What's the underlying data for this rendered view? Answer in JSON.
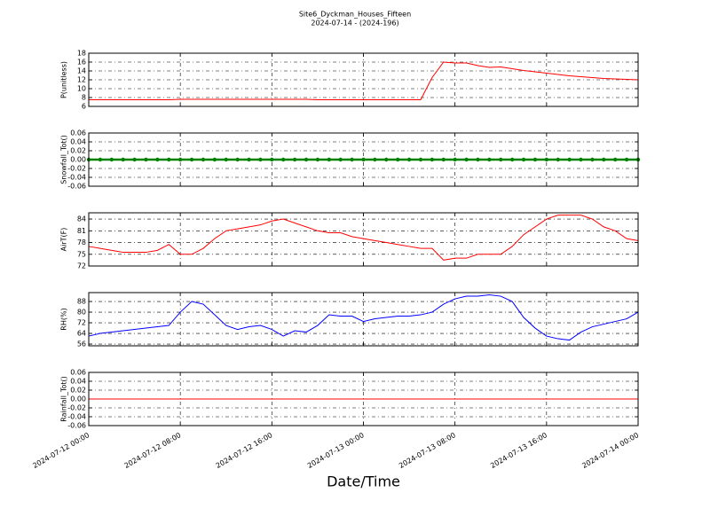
{
  "chart_data": [
    {
      "type": "line",
      "title": "Site6_Dyckman_Houses_Fifteen",
      "subtitle": "2024-07-14 - (2024-196)",
      "y_label": "P(unitless)",
      "x": [
        "2024-07-12 00:00",
        "2024-07-12 01:00",
        "2024-07-12 02:00",
        "2024-07-12 03:00",
        "2024-07-12 04:00",
        "2024-07-12 05:00",
        "2024-07-12 06:00",
        "2024-07-12 07:00",
        "2024-07-12 08:00",
        "2024-07-12 09:00",
        "2024-07-12 10:00",
        "2024-07-12 11:00",
        "2024-07-12 12:00",
        "2024-07-12 13:00",
        "2024-07-12 14:00",
        "2024-07-12 15:00",
        "2024-07-12 16:00",
        "2024-07-12 17:00",
        "2024-07-12 18:00",
        "2024-07-12 19:00",
        "2024-07-12 20:00",
        "2024-07-12 21:00",
        "2024-07-12 22:00",
        "2024-07-12 23:00",
        "2024-07-13 00:00",
        "2024-07-13 01:00",
        "2024-07-13 02:00",
        "2024-07-13 03:00",
        "2024-07-13 04:00",
        "2024-07-13 05:00",
        "2024-07-13 06:00",
        "2024-07-13 07:00",
        "2024-07-13 08:00",
        "2024-07-13 09:00",
        "2024-07-13 10:00",
        "2024-07-13 11:00",
        "2024-07-13 12:00",
        "2024-07-13 13:00",
        "2024-07-13 14:00",
        "2024-07-13 15:00",
        "2024-07-13 16:00",
        "2024-07-13 17:00",
        "2024-07-13 18:00",
        "2024-07-13 19:00",
        "2024-07-13 20:00",
        "2024-07-13 21:00",
        "2024-07-13 22:00",
        "2024-07-13 23:00",
        "2024-07-14 00:00"
      ],
      "series": [
        {
          "color": "#ff0000",
          "values": [
            7.5,
            7.5,
            7.5,
            7.5,
            7.5,
            7.5,
            7.5,
            7.5,
            7.6,
            7.6,
            7.6,
            7.6,
            7.6,
            7.6,
            7.6,
            7.6,
            7.6,
            7.6,
            7.6,
            7.6,
            7.5,
            7.5,
            7.5,
            7.5,
            7.5,
            7.5,
            7.5,
            7.5,
            7.5,
            7.5,
            12.5,
            16.0,
            15.8,
            15.8,
            15.2,
            14.8,
            14.9,
            14.5,
            14.1,
            13.8,
            13.5,
            13.2,
            12.9,
            12.7,
            12.5,
            12.3,
            12.2,
            12.1,
            12.0
          ]
        }
      ],
      "xlim": [
        "2024-07-12 00:00",
        "2024-07-14 00:00"
      ],
      "xticks": [
        "2024-07-12 00:00",
        "2024-07-12 08:00",
        "2024-07-12 16:00",
        "2024-07-13 00:00",
        "2024-07-13 08:00",
        "2024-07-13 16:00",
        "2024-07-14 00:00"
      ],
      "ylim": [
        6,
        18
      ],
      "yticks": [
        6,
        8,
        10,
        12,
        14,
        16,
        18
      ],
      "grid": true
    },
    {
      "type": "line",
      "y_label": "Snowfall_Tot()",
      "x": [
        "2024-07-12 00:00",
        "2024-07-12 01:00",
        "2024-07-12 02:00",
        "2024-07-12 03:00",
        "2024-07-12 04:00",
        "2024-07-12 05:00",
        "2024-07-12 06:00",
        "2024-07-12 07:00",
        "2024-07-12 08:00",
        "2024-07-12 09:00",
        "2024-07-12 10:00",
        "2024-07-12 11:00",
        "2024-07-12 12:00",
        "2024-07-12 13:00",
        "2024-07-12 14:00",
        "2024-07-12 15:00",
        "2024-07-12 16:00",
        "2024-07-12 17:00",
        "2024-07-12 18:00",
        "2024-07-12 19:00",
        "2024-07-12 20:00",
        "2024-07-12 21:00",
        "2024-07-12 22:00",
        "2024-07-12 23:00",
        "2024-07-13 00:00",
        "2024-07-13 01:00",
        "2024-07-13 02:00",
        "2024-07-13 03:00",
        "2024-07-13 04:00",
        "2024-07-13 05:00",
        "2024-07-13 06:00",
        "2024-07-13 07:00",
        "2024-07-13 08:00",
        "2024-07-13 09:00",
        "2024-07-13 10:00",
        "2024-07-13 11:00",
        "2024-07-13 12:00",
        "2024-07-13 13:00",
        "2024-07-13 14:00",
        "2024-07-13 15:00",
        "2024-07-13 16:00",
        "2024-07-13 17:00",
        "2024-07-13 18:00",
        "2024-07-13 19:00",
        "2024-07-13 20:00",
        "2024-07-13 21:00",
        "2024-07-13 22:00",
        "2024-07-13 23:00",
        "2024-07-14 00:00"
      ],
      "series": [
        {
          "color": "#008000",
          "markers": true,
          "values": [
            0,
            0,
            0,
            0,
            0,
            0,
            0,
            0,
            0,
            0,
            0,
            0,
            0,
            0,
            0,
            0,
            0,
            0,
            0,
            0,
            0,
            0,
            0,
            0,
            0,
            0,
            0,
            0,
            0,
            0,
            0,
            0,
            0,
            0,
            0,
            0,
            0,
            0,
            0,
            0,
            0,
            0,
            0,
            0,
            0,
            0,
            0,
            0,
            0
          ]
        }
      ],
      "xlim": [
        "2024-07-12 00:00",
        "2024-07-14 00:00"
      ],
      "xticks": [
        "2024-07-12 00:00",
        "2024-07-12 08:00",
        "2024-07-12 16:00",
        "2024-07-13 00:00",
        "2024-07-13 08:00",
        "2024-07-13 16:00",
        "2024-07-14 00:00"
      ],
      "ylim": [
        -0.06,
        0.06
      ],
      "yticks": [
        -0.06,
        -0.04,
        -0.02,
        {
          "value": 0,
          "label": "0.00"
        },
        0.02,
        0.04,
        0.06
      ],
      "grid": true
    },
    {
      "type": "line",
      "y_label": "AirT(F)",
      "x": [
        "2024-07-12 00:00",
        "2024-07-12 01:00",
        "2024-07-12 02:00",
        "2024-07-12 03:00",
        "2024-07-12 04:00",
        "2024-07-12 05:00",
        "2024-07-12 06:00",
        "2024-07-12 07:00",
        "2024-07-12 08:00",
        "2024-07-12 09:00",
        "2024-07-12 10:00",
        "2024-07-12 11:00",
        "2024-07-12 12:00",
        "2024-07-12 13:00",
        "2024-07-12 14:00",
        "2024-07-12 15:00",
        "2024-07-12 16:00",
        "2024-07-12 17:00",
        "2024-07-12 18:00",
        "2024-07-12 19:00",
        "2024-07-12 20:00",
        "2024-07-12 21:00",
        "2024-07-12 22:00",
        "2024-07-12 23:00",
        "2024-07-13 00:00",
        "2024-07-13 01:00",
        "2024-07-13 02:00",
        "2024-07-13 03:00",
        "2024-07-13 04:00",
        "2024-07-13 05:00",
        "2024-07-13 06:00",
        "2024-07-13 07:00",
        "2024-07-13 08:00",
        "2024-07-13 09:00",
        "2024-07-13 10:00",
        "2024-07-13 11:00",
        "2024-07-13 12:00",
        "2024-07-13 13:00",
        "2024-07-13 14:00",
        "2024-07-13 15:00",
        "2024-07-13 16:00",
        "2024-07-13 17:00",
        "2024-07-13 18:00",
        "2024-07-13 19:00",
        "2024-07-13 20:00",
        "2024-07-13 21:00",
        "2024-07-13 22:00",
        "2024-07-13 23:00",
        "2024-07-14 00:00"
      ],
      "series": [
        {
          "color": "#ff0000",
          "values": [
            77,
            76.5,
            76,
            75.5,
            75.5,
            75.5,
            76,
            77.5,
            75,
            75,
            76.5,
            79,
            81,
            81.5,
            82,
            82.5,
            83.5,
            84,
            83,
            82,
            81,
            80.5,
            80.5,
            79.5,
            79,
            78.5,
            78,
            77.5,
            77,
            76.5,
            76.5,
            73.5,
            74,
            74,
            75,
            75,
            75,
            77,
            80,
            82,
            84,
            85,
            85,
            85,
            84,
            82,
            81,
            79,
            78.5
          ]
        }
      ],
      "xlim": [
        "2024-07-12 00:00",
        "2024-07-14 00:00"
      ],
      "xticks": [
        "2024-07-12 00:00",
        "2024-07-12 08:00",
        "2024-07-12 16:00",
        "2024-07-13 00:00",
        "2024-07-13 08:00",
        "2024-07-13 16:00",
        "2024-07-14 00:00"
      ],
      "ylim": [
        72,
        85.6
      ],
      "yticks": [
        72,
        75,
        78,
        81,
        84
      ],
      "grid": true
    },
    {
      "type": "line",
      "y_label": "RH(%)",
      "x": [
        "2024-07-12 00:00",
        "2024-07-12 01:00",
        "2024-07-12 02:00",
        "2024-07-12 03:00",
        "2024-07-12 04:00",
        "2024-07-12 05:00",
        "2024-07-12 06:00",
        "2024-07-12 07:00",
        "2024-07-12 08:00",
        "2024-07-12 09:00",
        "2024-07-12 10:00",
        "2024-07-12 11:00",
        "2024-07-12 12:00",
        "2024-07-12 13:00",
        "2024-07-12 14:00",
        "2024-07-12 15:00",
        "2024-07-12 16:00",
        "2024-07-12 17:00",
        "2024-07-12 18:00",
        "2024-07-12 19:00",
        "2024-07-12 20:00",
        "2024-07-12 21:00",
        "2024-07-12 22:00",
        "2024-07-12 23:00",
        "2024-07-13 00:00",
        "2024-07-13 01:00",
        "2024-07-13 02:00",
        "2024-07-13 03:00",
        "2024-07-13 04:00",
        "2024-07-13 05:00",
        "2024-07-13 06:00",
        "2024-07-13 07:00",
        "2024-07-13 08:00",
        "2024-07-13 09:00",
        "2024-07-13 10:00",
        "2024-07-13 11:00",
        "2024-07-13 12:00",
        "2024-07-13 13:00",
        "2024-07-13 14:00",
        "2024-07-13 15:00",
        "2024-07-13 16:00",
        "2024-07-13 17:00",
        "2024-07-13 18:00",
        "2024-07-13 19:00",
        "2024-07-13 20:00",
        "2024-07-13 21:00",
        "2024-07-13 22:00",
        "2024-07-13 23:00",
        "2024-07-14 00:00"
      ],
      "series": [
        {
          "color": "#0000ff",
          "values": [
            62,
            64,
            65,
            66,
            67,
            68,
            69,
            70,
            80,
            88,
            86,
            78,
            70,
            67,
            69,
            70,
            67,
            62,
            66,
            65,
            70,
            78,
            77,
            77,
            73,
            75,
            76,
            77,
            77,
            78,
            80,
            86,
            90,
            92,
            92,
            93,
            92,
            88,
            76,
            68,
            62,
            60,
            59,
            65,
            69,
            71,
            73,
            75,
            80
          ]
        }
      ],
      "xlim": [
        "2024-07-12 00:00",
        "2024-07-14 00:00"
      ],
      "xticks": [
        "2024-07-12 00:00",
        "2024-07-12 08:00",
        "2024-07-12 16:00",
        "2024-07-13 00:00",
        "2024-07-13 08:00",
        "2024-07-13 16:00",
        "2024-07-14 00:00"
      ],
      "ylim": [
        54.7,
        94.7
      ],
      "yticks": [
        56,
        64,
        72,
        80,
        88
      ],
      "grid": true
    },
    {
      "type": "line",
      "y_label": "Rainfall_Tot()",
      "x_label": "Date/Time",
      "x": [
        "2024-07-12 00:00",
        "2024-07-12 01:00",
        "2024-07-12 02:00",
        "2024-07-12 03:00",
        "2024-07-12 04:00",
        "2024-07-12 05:00",
        "2024-07-12 06:00",
        "2024-07-12 07:00",
        "2024-07-12 08:00",
        "2024-07-12 09:00",
        "2024-07-12 10:00",
        "2024-07-12 11:00",
        "2024-07-12 12:00",
        "2024-07-12 13:00",
        "2024-07-12 14:00",
        "2024-07-12 15:00",
        "2024-07-12 16:00",
        "2024-07-12 17:00",
        "2024-07-12 18:00",
        "2024-07-12 19:00",
        "2024-07-12 20:00",
        "2024-07-12 21:00",
        "2024-07-12 22:00",
        "2024-07-12 23:00",
        "2024-07-13 00:00",
        "2024-07-13 01:00",
        "2024-07-13 02:00",
        "2024-07-13 03:00",
        "2024-07-13 04:00",
        "2024-07-13 05:00",
        "2024-07-13 06:00",
        "2024-07-13 07:00",
        "2024-07-13 08:00",
        "2024-07-13 09:00",
        "2024-07-13 10:00",
        "2024-07-13 11:00",
        "2024-07-13 12:00",
        "2024-07-13 13:00",
        "2024-07-13 14:00",
        "2024-07-13 15:00",
        "2024-07-13 16:00",
        "2024-07-13 17:00",
        "2024-07-13 18:00",
        "2024-07-13 19:00",
        "2024-07-13 20:00",
        "2024-07-13 21:00",
        "2024-07-13 22:00",
        "2024-07-13 23:00",
        "2024-07-14 00:00"
      ],
      "series": [
        {
          "color": "#ff0000",
          "values": [
            0,
            0,
            0,
            0,
            0,
            0,
            0,
            0,
            0,
            0,
            0,
            0,
            0,
            0,
            0,
            0,
            0,
            0,
            0,
            0,
            0,
            0,
            0,
            0,
            0,
            0,
            0,
            0,
            0,
            0,
            0,
            0,
            0,
            0,
            0,
            0,
            0,
            0,
            0,
            0,
            0,
            0,
            0,
            0,
            0,
            0,
            0,
            0,
            0
          ]
        }
      ],
      "xlim": [
        "2024-07-12 00:00",
        "2024-07-14 00:00"
      ],
      "xticks": [
        "2024-07-12 00:00",
        "2024-07-12 08:00",
        "2024-07-12 16:00",
        "2024-07-13 00:00",
        "2024-07-13 08:00",
        "2024-07-13 16:00",
        "2024-07-14 00:00"
      ],
      "ylim": [
        -0.06,
        0.06
      ],
      "yticks": [
        -0.06,
        -0.04,
        -0.02,
        {
          "value": 0,
          "label": "0.00"
        },
        0.02,
        0.04,
        0.06
      ],
      "grid": true
    }
  ]
}
